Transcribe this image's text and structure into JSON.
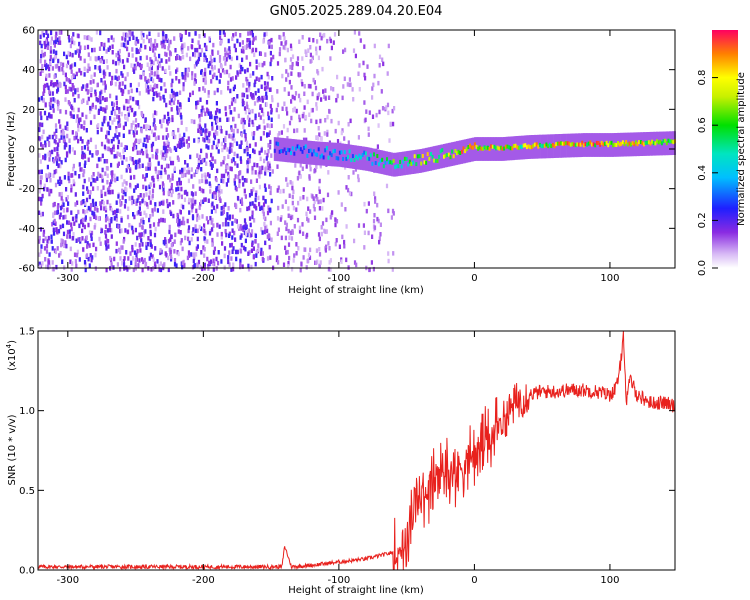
{
  "title": "GN05.2025.289.04.20.E04",
  "chart_data": [
    {
      "type": "heatmap",
      "name": "spectrogram",
      "xlabel": "Height of straight line (km)",
      "ylabel": "Frequency (Hz)",
      "xlim": [
        -322,
        148
      ],
      "ylim": [
        -60,
        60
      ],
      "xticks": [
        -300,
        -200,
        -100,
        0,
        100
      ],
      "xtick_labels": [
        "-300",
        "-200",
        "-100",
        "0",
        "100"
      ],
      "yticks": [
        -60,
        -40,
        -20,
        0,
        20,
        40,
        60
      ],
      "ytick_labels": [
        "-60",
        "-40",
        "-20",
        "0",
        "20",
        "40",
        "60"
      ],
      "colorbar": {
        "label": "Normalized spectral amplitude",
        "range": [
          0,
          1
        ],
        "ticks": [
          0.0,
          0.2,
          0.4,
          0.6,
          0.8
        ],
        "tick_labels": [
          "0.0",
          "0.2",
          "0.4",
          "0.6",
          "0.8"
        ]
      },
      "noise_region_km": [
        -322,
        -60
      ],
      "gap_at_km": -148,
      "signal_track": [
        {
          "x": -148,
          "y": 0,
          "amp": 0.35
        },
        {
          "x": -120,
          "y": -2,
          "amp": 0.4
        },
        {
          "x": -100,
          "y": -3,
          "amp": 0.45
        },
        {
          "x": -80,
          "y": -5,
          "amp": 0.5
        },
        {
          "x": -60,
          "y": -8,
          "amp": 0.7
        },
        {
          "x": -40,
          "y": -6,
          "amp": 0.8
        },
        {
          "x": -20,
          "y": -3,
          "amp": 0.9
        },
        {
          "x": 0,
          "y": 0,
          "amp": 0.95
        },
        {
          "x": 20,
          "y": 0,
          "amp": 0.9
        },
        {
          "x": 40,
          "y": 1,
          "amp": 0.85
        },
        {
          "x": 80,
          "y": 2,
          "amp": 0.95
        },
        {
          "x": 100,
          "y": 2,
          "amp": 0.9
        },
        {
          "x": 148,
          "y": 3,
          "amp": 0.85
        }
      ]
    },
    {
      "type": "line",
      "name": "snr",
      "xlabel": "Height of straight line (km)",
      "ylabel": "SNR (10 * v/v)",
      "scale_label": "(x10",
      "scale_exp": "4",
      "scale_close": ")",
      "color": "#e8211d",
      "xlim": [
        -322,
        148
      ],
      "ylim": [
        0,
        1.5
      ],
      "xticks": [
        -300,
        -200,
        -100,
        0,
        100
      ],
      "xtick_labels": [
        "-300",
        "-200",
        "-100",
        "0",
        "100"
      ],
      "yticks": [
        0,
        0.5,
        1.0,
        1.5
      ],
      "ytick_labels": [
        "0.0",
        "0.5",
        "1.0",
        "1.5"
      ],
      "series": [
        {
          "name": "SNR",
          "x": [
            -322,
            -300,
            -250,
            -200,
            -150,
            -142,
            -140,
            -135,
            -120,
            -100,
            -80,
            -65,
            -55,
            -50,
            -45,
            -40,
            -35,
            -30,
            -25,
            -20,
            -15,
            -10,
            -5,
            0,
            5,
            10,
            15,
            20,
            25,
            30,
            35,
            40,
            50,
            60,
            70,
            80,
            90,
            100,
            105,
            108,
            110,
            112,
            115,
            120,
            130,
            140,
            148
          ],
          "y": [
            0.02,
            0.02,
            0.02,
            0.02,
            0.02,
            0.02,
            0.15,
            0.02,
            0.03,
            0.05,
            0.07,
            0.1,
            0.12,
            0.2,
            0.35,
            0.45,
            0.5,
            0.55,
            0.6,
            0.65,
            0.6,
            0.65,
            0.7,
            0.72,
            0.78,
            0.82,
            0.85,
            0.92,
            0.98,
            1.05,
            1.08,
            1.1,
            1.12,
            1.12,
            1.13,
            1.13,
            1.12,
            1.1,
            1.15,
            1.3,
            1.5,
            1.05,
            1.2,
            1.1,
            1.05,
            1.05,
            1.03
          ]
        }
      ]
    }
  ]
}
